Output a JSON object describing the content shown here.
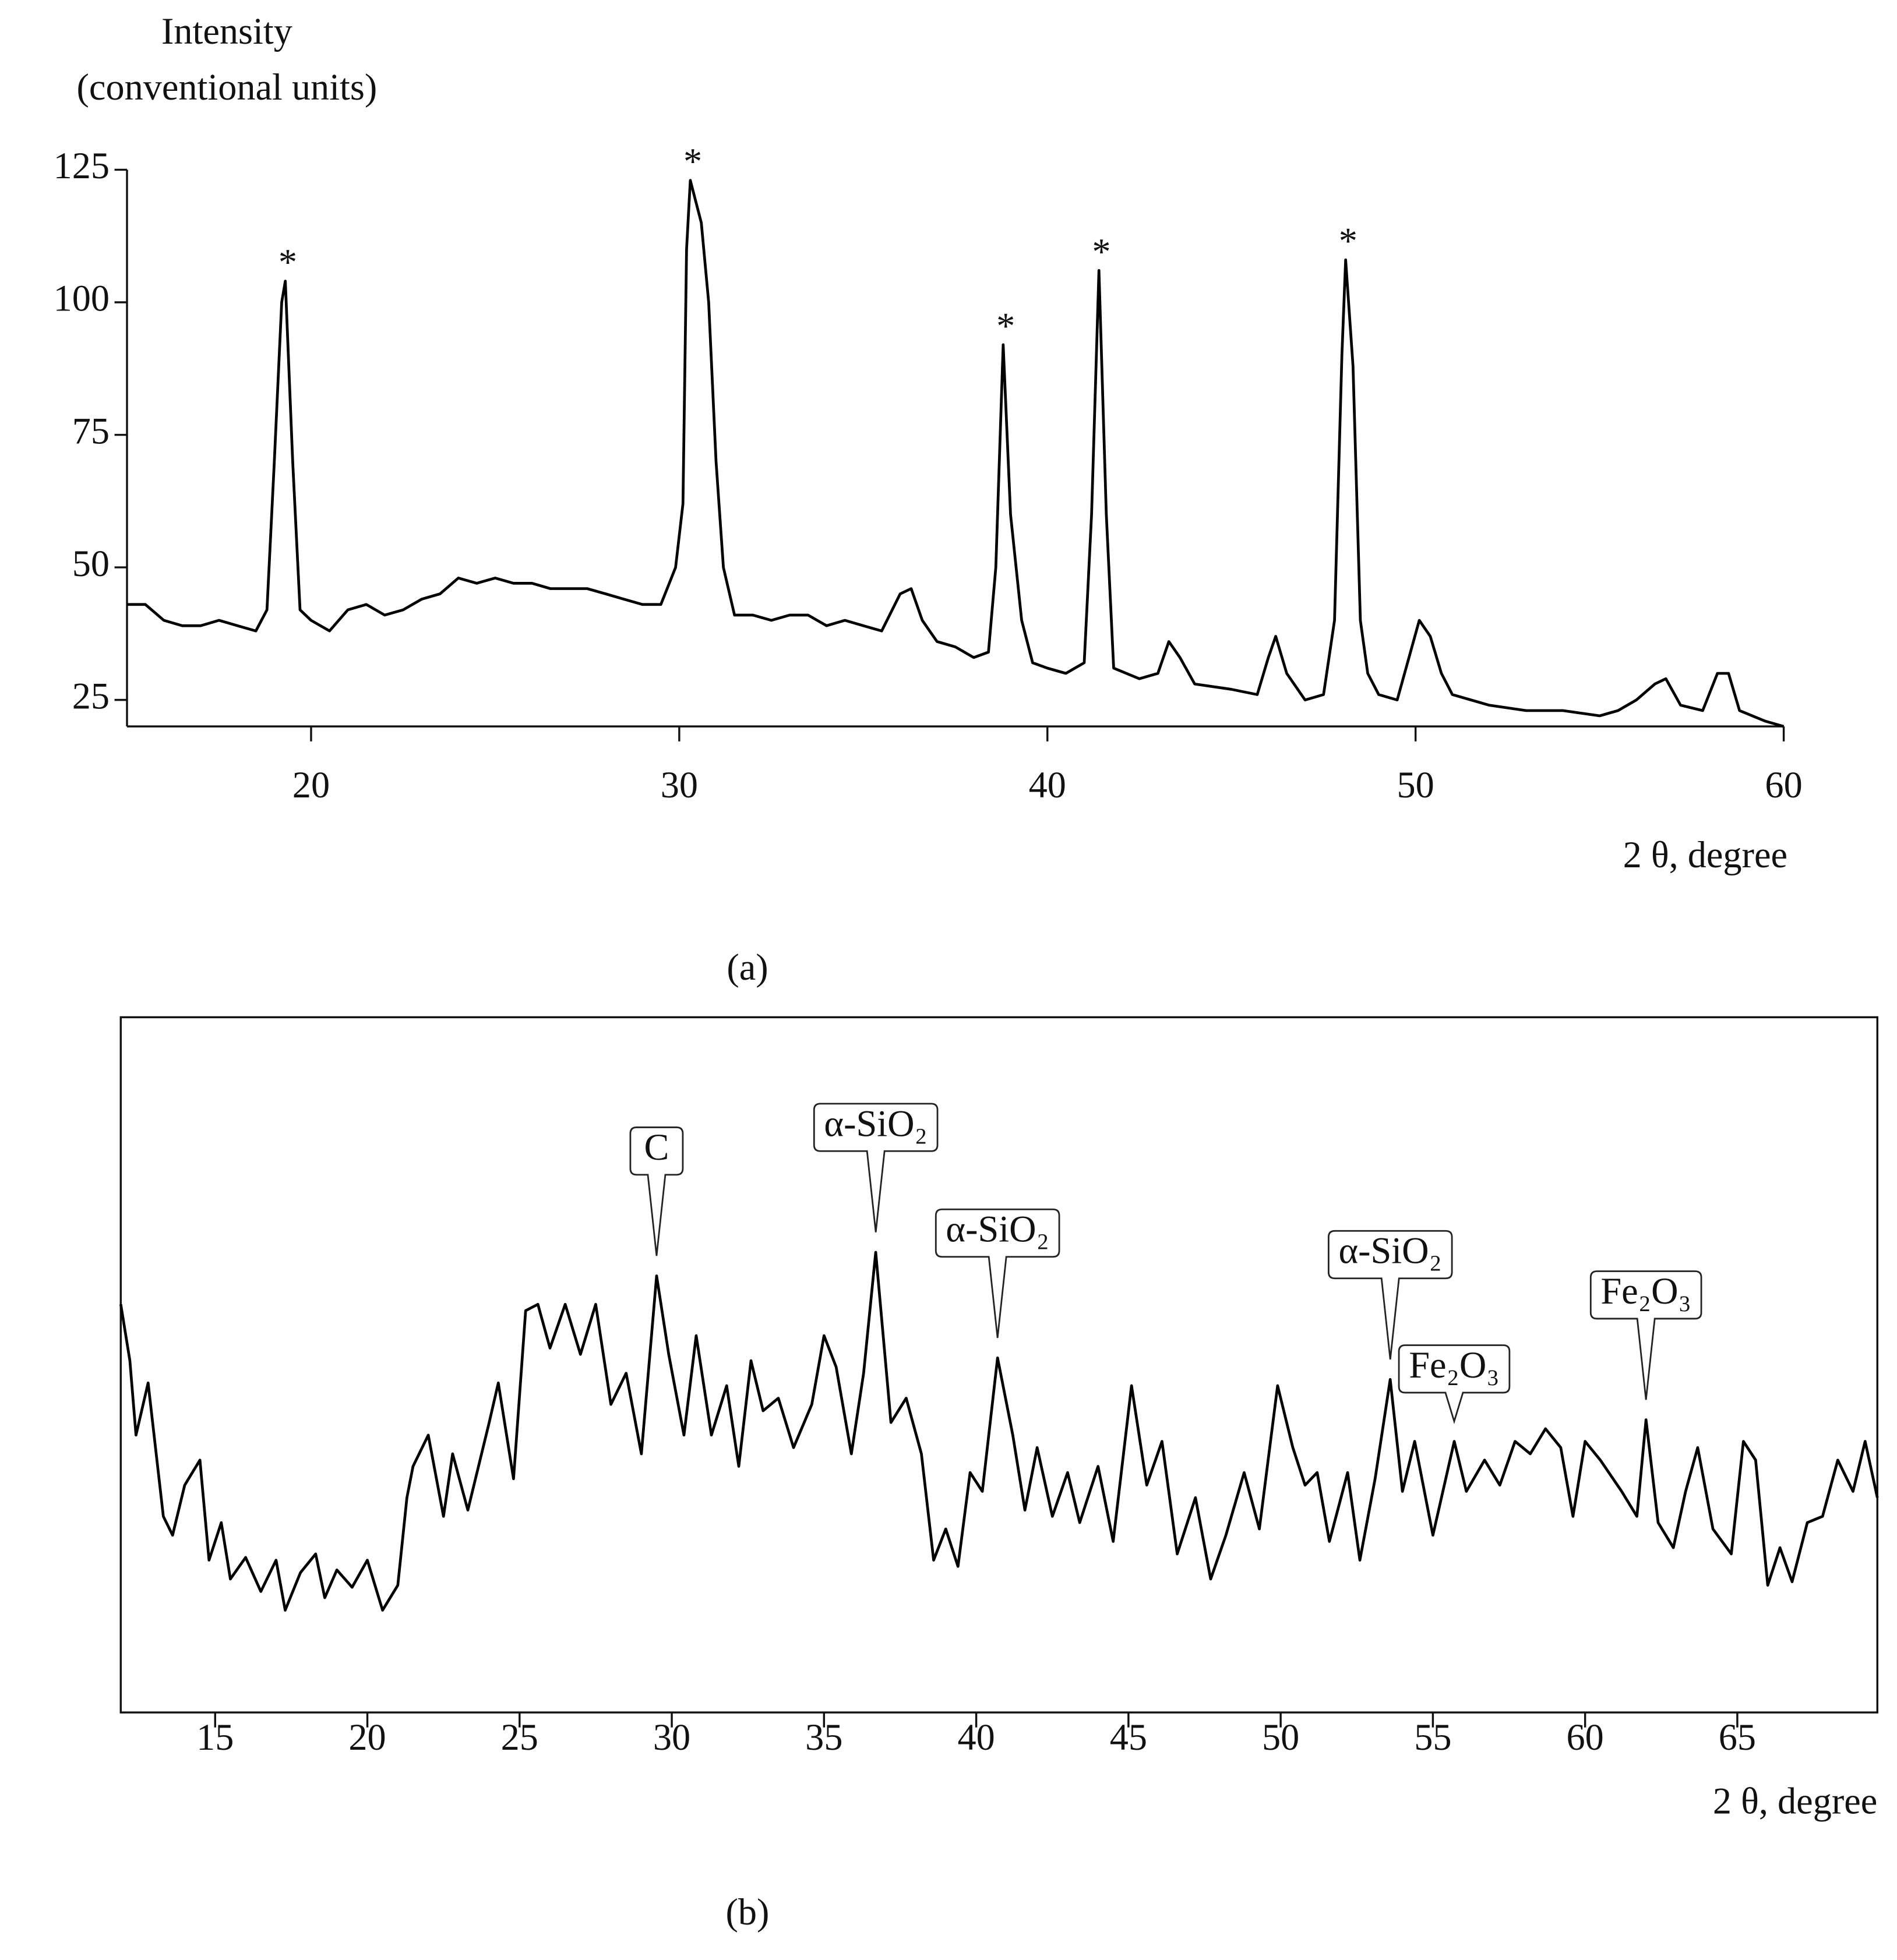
{
  "chart_data": [
    {
      "type": "line",
      "y_label_line1": "Intensity",
      "y_label_line2": "(conventional units)",
      "x_label": "2 θ, degree",
      "caption": "(a)",
      "xlim": [
        15,
        60
      ],
      "ylim": [
        20,
        125
      ],
      "xticks": [
        20,
        30,
        40,
        50,
        60
      ],
      "yticks": [
        25,
        50,
        75,
        100,
        125
      ],
      "x": [
        15,
        15.5,
        16,
        16.5,
        17,
        17.5,
        18,
        18.5,
        18.8,
        19.0,
        19.2,
        19.3,
        19.5,
        19.7,
        20,
        20.5,
        21,
        21.5,
        22,
        22.5,
        23,
        23.5,
        24,
        24.5,
        25,
        25.5,
        26,
        26.5,
        27,
        27.5,
        28,
        28.5,
        29,
        29.5,
        29.9,
        30.1,
        30.2,
        30.3,
        30.6,
        30.8,
        31,
        31.2,
        31.5,
        32,
        32.5,
        33,
        33.5,
        34,
        34.5,
        35,
        35.5,
        36,
        36.3,
        36.6,
        37,
        37.5,
        38,
        38.4,
        38.6,
        38.8,
        39.0,
        39.3,
        39.6,
        40,
        40.5,
        41,
        41.2,
        41.4,
        41.6,
        41.8,
        42.5,
        43,
        43.3,
        43.6,
        44,
        45,
        45.7,
        46,
        46.2,
        46.5,
        47,
        47.5,
        47.8,
        48,
        48.1,
        48.3,
        48.5,
        48.7,
        49,
        49.5,
        49.9,
        50.1,
        50.4,
        50.7,
        51,
        52,
        53,
        54,
        55,
        55.5,
        56,
        56.5,
        56.8,
        57.2,
        57.8,
        58.2,
        58.5,
        58.8,
        59.5,
        60
      ],
      "series": [
        {
          "color": "#000000",
          "values": [
            43,
            43,
            40,
            39,
            39,
            40,
            39,
            38,
            42,
            70,
            100,
            104,
            70,
            42,
            40,
            38,
            42,
            43,
            41,
            42,
            44,
            45,
            48,
            47,
            48,
            47,
            47,
            46,
            46,
            46,
            45,
            44,
            43,
            43,
            50,
            62,
            110,
            123,
            115,
            100,
            70,
            50,
            41,
            41,
            40,
            41,
            41,
            39,
            40,
            39,
            38,
            45,
            46,
            40,
            36,
            35,
            33,
            34,
            50,
            92,
            60,
            40,
            32,
            31,
            30,
            32,
            60,
            106,
            60,
            31,
            29,
            30,
            36,
            33,
            28,
            27,
            26,
            33,
            37,
            30,
            25,
            26,
            40,
            90,
            108,
            88,
            40,
            30,
            26,
            25,
            35,
            40,
            37,
            30,
            26,
            24,
            23,
            23,
            22,
            23,
            25,
            28,
            29,
            24,
            23,
            30,
            30,
            23,
            21,
            20
          ]
        }
      ],
      "annotations": [
        {
          "text": "*",
          "x": 19.3,
          "y": 104
        },
        {
          "text": "*",
          "x": 30.3,
          "y": 123
        },
        {
          "text": "*",
          "x": 38.8,
          "y": 92
        },
        {
          "text": "*",
          "x": 41.4,
          "y": 106
        },
        {
          "text": "*",
          "x": 48.1,
          "y": 108
        }
      ]
    },
    {
      "type": "line",
      "x_label": "2 θ, degree",
      "caption": "(b)",
      "xlim": [
        11.9,
        69.6
      ],
      "ylim": [
        0,
        100
      ],
      "xticks": [
        15,
        20,
        25,
        30,
        35,
        40,
        45,
        50,
        55,
        60,
        65
      ],
      "x": [
        11.9,
        12.2,
        12.4,
        12.8,
        13.3,
        13.6,
        14.0,
        14.5,
        14.8,
        15.2,
        15.5,
        16.0,
        16.5,
        17.0,
        17.3,
        17.8,
        18.3,
        18.6,
        19.0,
        19.5,
        20.0,
        20.5,
        21.0,
        21.3,
        21.5,
        22.0,
        22.5,
        22.8,
        23.3,
        24.0,
        24.3,
        24.8,
        25.2,
        25.6,
        26.0,
        26.5,
        27.0,
        27.5,
        28.0,
        28.5,
        29.0,
        29.5,
        29.9,
        30.4,
        30.8,
        31.3,
        31.8,
        32.2,
        32.6,
        33.0,
        33.5,
        34.0,
        34.6,
        35.0,
        35.4,
        35.9,
        36.3,
        36.7,
        37.2,
        37.7,
        38.2,
        38.6,
        39.0,
        39.4,
        39.8,
        40.2,
        40.7,
        41.2,
        41.6,
        42.0,
        42.5,
        43.0,
        43.4,
        44.0,
        44.5,
        45.1,
        45.6,
        46.1,
        46.6,
        47.2,
        47.7,
        48.2,
        48.8,
        49.3,
        49.9,
        50.4,
        50.8,
        51.2,
        51.6,
        52.2,
        52.6,
        53.1,
        53.6,
        54.0,
        54.4,
        55.0,
        55.7,
        56.1,
        56.7,
        57.2,
        57.7,
        58.2,
        58.7,
        59.2,
        59.6,
        60.0,
        60.5,
        61.2,
        61.7,
        62.0,
        62.4,
        62.9,
        63.3,
        63.7,
        64.2,
        64.8,
        65.2,
        65.6,
        66.0,
        66.4,
        66.8,
        67.3,
        67.8,
        68.3,
        68.8,
        69.2,
        69.6
      ],
      "series": [
        {
          "color": "#000000",
          "values": [
            58.7,
            50.6,
            39.9,
            47.4,
            28.2,
            25.5,
            32.7,
            36.3,
            21.9,
            27.3,
            19.2,
            22.3,
            17.4,
            21.9,
            14.7,
            20.1,
            22.8,
            16.5,
            20.5,
            18,
            21.9,
            14.7,
            18.3,
            30.9,
            35.4,
            39.9,
            28.2,
            37.2,
            29.1,
            41.7,
            47.4,
            33.6,
            57.8,
            58.7,
            52.4,
            58.7,
            51.5,
            58.7,
            44.3,
            48.8,
            37.2,
            62.8,
            51.5,
            39.9,
            54.2,
            39.9,
            47,
            35.4,
            50.6,
            43.4,
            45.2,
            38.1,
            44.3,
            54.2,
            49.7,
            37.2,
            48.8,
            66.2,
            41.7,
            45.2,
            37.2,
            21.9,
            26.4,
            21,
            34.5,
            31.8,
            51,
            39.9,
            29.1,
            38.1,
            28.2,
            34.5,
            27.3,
            35.4,
            24.6,
            47,
            32.7,
            39,
            22.8,
            30.9,
            19.2,
            25.5,
            34.5,
            26.4,
            47,
            38.1,
            32.7,
            34.5,
            24.6,
            34.5,
            21.9,
            33.6,
            47.9,
            31.8,
            39,
            25.5,
            39,
            31.8,
            36.3,
            32.7,
            39,
            37.2,
            40.8,
            38.1,
            28.2,
            39,
            36.3,
            31.8,
            28.2,
            42.1,
            27.3,
            23.7,
            31.8,
            38.1,
            26.4,
            22.8,
            39,
            36.3,
            18.3,
            23.7,
            18.8,
            27.3,
            28.2,
            36.3,
            31.8,
            39,
            30.9
          ]
        }
      ],
      "annotations": [
        {
          "text": "C",
          "x": 29.5,
          "y": 62.8
        },
        {
          "text": "α-SiO₂",
          "x": 36.7,
          "y": 66.2
        },
        {
          "text": "α-SiO₂",
          "x": 40.7,
          "y": 51
        },
        {
          "text": "α-SiO₂",
          "x": 53.6,
          "y": 47.9
        },
        {
          "text": "Fe₂O₃",
          "x": 55.7,
          "y": 39
        },
        {
          "text": "Fe₂O₃",
          "x": 62.0,
          "y": 42.1
        }
      ]
    }
  ]
}
